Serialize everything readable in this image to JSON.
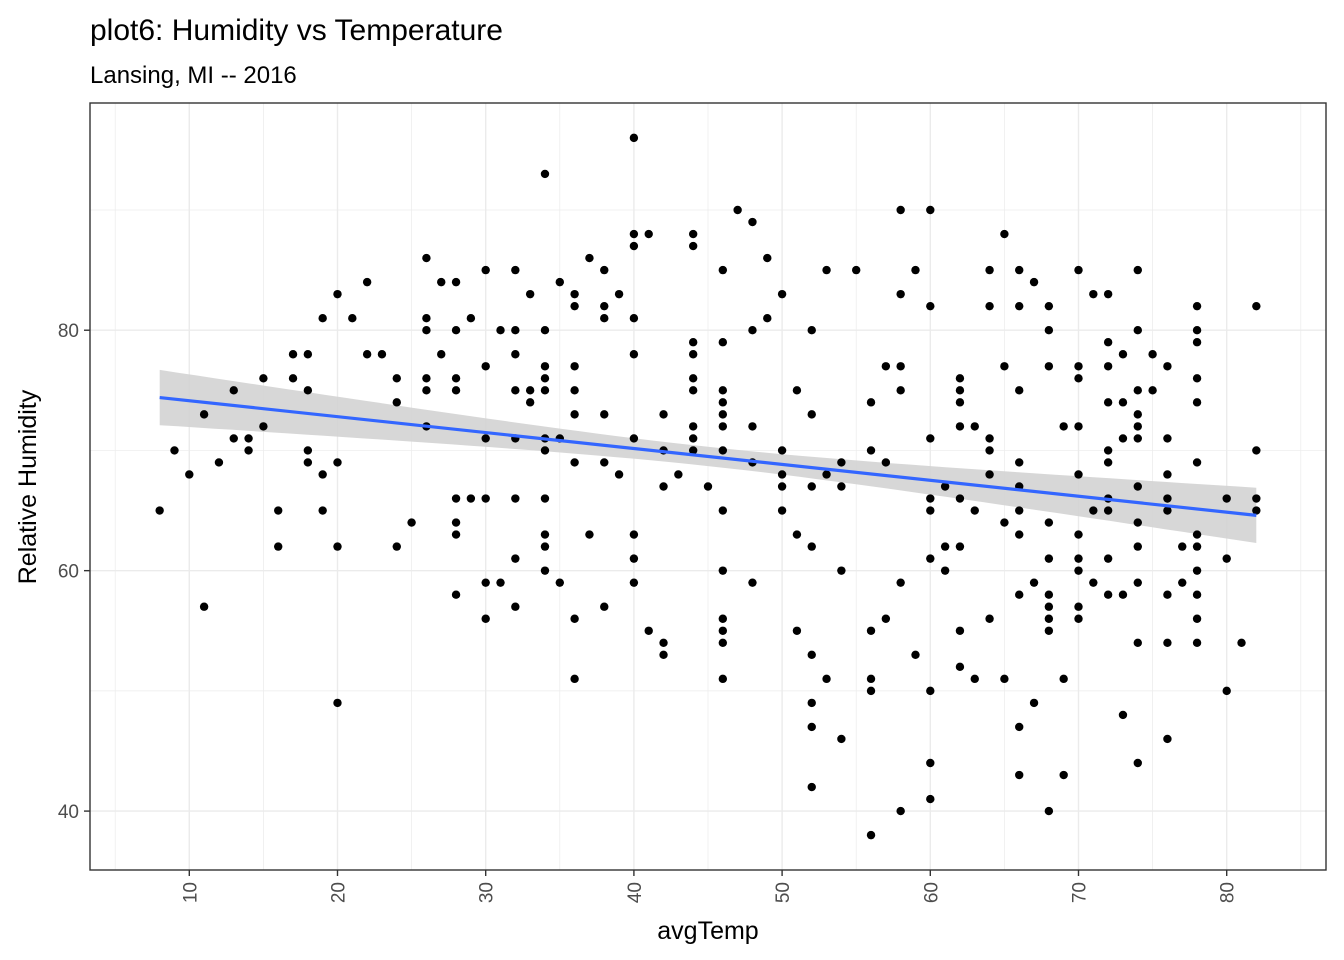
{
  "chart_data": {
    "type": "scatter",
    "title": "plot6: Humidity vs Temperature",
    "subtitle": "Lansing, MI -- 2016",
    "xlabel": "avgTemp",
    "ylabel": "Relative Humidity",
    "xlim": [
      3.3,
      86.7
    ],
    "ylim": [
      35.1,
      98.9
    ],
    "x_ticks": [
      10,
      20,
      30,
      40,
      50,
      60,
      70,
      80
    ],
    "y_ticks": [
      40,
      60,
      80
    ],
    "grid": true,
    "colors": {
      "points": "#000000",
      "trend_line": "#3366FF",
      "confidence_band": "#d3d3d3",
      "panel_border": "#333333",
      "grid": "#ebebeb"
    },
    "trend_line": {
      "method": "linear",
      "start": [
        8,
        74.4
      ],
      "end": [
        82,
        64.6
      ],
      "band_halfwidth_ends": 2.3,
      "band_halfwidth_mid": 0.8
    },
    "points": [
      [
        8,
        65
      ],
      [
        9,
        70
      ],
      [
        10,
        68
      ],
      [
        11,
        73
      ],
      [
        11,
        57
      ],
      [
        12,
        69
      ],
      [
        13,
        75
      ],
      [
        13,
        71
      ],
      [
        14,
        71
      ],
      [
        14,
        70
      ],
      [
        15,
        76
      ],
      [
        15,
        72
      ],
      [
        16,
        65
      ],
      [
        16,
        62
      ],
      [
        17,
        78
      ],
      [
        17,
        76
      ],
      [
        18,
        78
      ],
      [
        18,
        75
      ],
      [
        18,
        70
      ],
      [
        18,
        69
      ],
      [
        19,
        81
      ],
      [
        19,
        68
      ],
      [
        19,
        65
      ],
      [
        20,
        83
      ],
      [
        20,
        69
      ],
      [
        20,
        62
      ],
      [
        20,
        49
      ],
      [
        21,
        81
      ],
      [
        22,
        84
      ],
      [
        22,
        78
      ],
      [
        23,
        78
      ],
      [
        24,
        76
      ],
      [
        24,
        74
      ],
      [
        24,
        62
      ],
      [
        25,
        64
      ],
      [
        26,
        86
      ],
      [
        26,
        81
      ],
      [
        26,
        80
      ],
      [
        26,
        76
      ],
      [
        26,
        75
      ],
      [
        26,
        72
      ],
      [
        27,
        84
      ],
      [
        27,
        78
      ],
      [
        28,
        84
      ],
      [
        28,
        80
      ],
      [
        28,
        76
      ],
      [
        28,
        75
      ],
      [
        28,
        66
      ],
      [
        28,
        64
      ],
      [
        28,
        63
      ],
      [
        28,
        58
      ],
      [
        29,
        81
      ],
      [
        29,
        66
      ],
      [
        30,
        85
      ],
      [
        30,
        77
      ],
      [
        30,
        71
      ],
      [
        30,
        66
      ],
      [
        30,
        59
      ],
      [
        30,
        56
      ],
      [
        31,
        80
      ],
      [
        31,
        59
      ],
      [
        32,
        85
      ],
      [
        32,
        80
      ],
      [
        32,
        78
      ],
      [
        32,
        75
      ],
      [
        32,
        71
      ],
      [
        32,
        66
      ],
      [
        32,
        61
      ],
      [
        32,
        57
      ],
      [
        33,
        83
      ],
      [
        33,
        75
      ],
      [
        33,
        74
      ],
      [
        34,
        93
      ],
      [
        34,
        80
      ],
      [
        34,
        77
      ],
      [
        34,
        76
      ],
      [
        34,
        75
      ],
      [
        34,
        71
      ],
      [
        34,
        70
      ],
      [
        34,
        66
      ],
      [
        34,
        63
      ],
      [
        34,
        62
      ],
      [
        34,
        60
      ],
      [
        35,
        84
      ],
      [
        35,
        71
      ],
      [
        35,
        59
      ],
      [
        36,
        83
      ],
      [
        36,
        82
      ],
      [
        36,
        77
      ],
      [
        36,
        75
      ],
      [
        36,
        73
      ],
      [
        36,
        69
      ],
      [
        36,
        56
      ],
      [
        36,
        51
      ],
      [
        37,
        86
      ],
      [
        37,
        63
      ],
      [
        38,
        85
      ],
      [
        38,
        82
      ],
      [
        38,
        81
      ],
      [
        38,
        73
      ],
      [
        38,
        69
      ],
      [
        38,
        57
      ],
      [
        39,
        83
      ],
      [
        39,
        68
      ],
      [
        40,
        96
      ],
      [
        40,
        88
      ],
      [
        40,
        87
      ],
      [
        40,
        81
      ],
      [
        40,
        78
      ],
      [
        40,
        71
      ],
      [
        40,
        63
      ],
      [
        40,
        61
      ],
      [
        40,
        59
      ],
      [
        41,
        88
      ],
      [
        41,
        55
      ],
      [
        42,
        73
      ],
      [
        42,
        70
      ],
      [
        42,
        67
      ],
      [
        42,
        54
      ],
      [
        42,
        53
      ],
      [
        43,
        68
      ],
      [
        44,
        88
      ],
      [
        44,
        87
      ],
      [
        44,
        79
      ],
      [
        44,
        78
      ],
      [
        44,
        76
      ],
      [
        44,
        75
      ],
      [
        44,
        72
      ],
      [
        44,
        71
      ],
      [
        44,
        70
      ],
      [
        45,
        67
      ],
      [
        46,
        85
      ],
      [
        46,
        79
      ],
      [
        46,
        75
      ],
      [
        46,
        74
      ],
      [
        46,
        73
      ],
      [
        46,
        72
      ],
      [
        46,
        70
      ],
      [
        46,
        65
      ],
      [
        46,
        60
      ],
      [
        46,
        56
      ],
      [
        46,
        55
      ],
      [
        46,
        54
      ],
      [
        46,
        51
      ],
      [
        47,
        90
      ],
      [
        48,
        89
      ],
      [
        48,
        80
      ],
      [
        48,
        72
      ],
      [
        48,
        69
      ],
      [
        48,
        59
      ],
      [
        49,
        86
      ],
      [
        49,
        81
      ],
      [
        50,
        83
      ],
      [
        50,
        70
      ],
      [
        50,
        68
      ],
      [
        50,
        67
      ],
      [
        50,
        65
      ],
      [
        51,
        75
      ],
      [
        51,
        63
      ],
      [
        51,
        55
      ],
      [
        52,
        80
      ],
      [
        52,
        73
      ],
      [
        52,
        67
      ],
      [
        52,
        62
      ],
      [
        52,
        53
      ],
      [
        52,
        49
      ],
      [
        52,
        47
      ],
      [
        52,
        42
      ],
      [
        53,
        85
      ],
      [
        53,
        68
      ],
      [
        53,
        51
      ],
      [
        54,
        69
      ],
      [
        54,
        67
      ],
      [
        54,
        60
      ],
      [
        54,
        46
      ],
      [
        55,
        85
      ],
      [
        56,
        74
      ],
      [
        56,
        70
      ],
      [
        56,
        55
      ],
      [
        56,
        51
      ],
      [
        56,
        50
      ],
      [
        56,
        38
      ],
      [
        57,
        77
      ],
      [
        57,
        69
      ],
      [
        57,
        56
      ],
      [
        58,
        90
      ],
      [
        58,
        83
      ],
      [
        58,
        77
      ],
      [
        58,
        75
      ],
      [
        58,
        59
      ],
      [
        58,
        40
      ],
      [
        59,
        85
      ],
      [
        59,
        53
      ],
      [
        60,
        90
      ],
      [
        60,
        82
      ],
      [
        60,
        71
      ],
      [
        60,
        66
      ],
      [
        60,
        65
      ],
      [
        60,
        61
      ],
      [
        60,
        50
      ],
      [
        60,
        44
      ],
      [
        60,
        41
      ],
      [
        61,
        67
      ],
      [
        61,
        62
      ],
      [
        61,
        60
      ],
      [
        62,
        76
      ],
      [
        62,
        75
      ],
      [
        62,
        74
      ],
      [
        62,
        72
      ],
      [
        62,
        66
      ],
      [
        62,
        62
      ],
      [
        62,
        55
      ],
      [
        62,
        52
      ],
      [
        63,
        72
      ],
      [
        63,
        65
      ],
      [
        63,
        51
      ],
      [
        64,
        85
      ],
      [
        64,
        82
      ],
      [
        64,
        71
      ],
      [
        64,
        70
      ],
      [
        64,
        68
      ],
      [
        64,
        56
      ],
      [
        65,
        88
      ],
      [
        65,
        77
      ],
      [
        65,
        64
      ],
      [
        65,
        51
      ],
      [
        66,
        85
      ],
      [
        66,
        82
      ],
      [
        66,
        75
      ],
      [
        66,
        69
      ],
      [
        66,
        67
      ],
      [
        66,
        65
      ],
      [
        66,
        63
      ],
      [
        66,
        58
      ],
      [
        66,
        47
      ],
      [
        66,
        43
      ],
      [
        67,
        84
      ],
      [
        67,
        59
      ],
      [
        67,
        49
      ],
      [
        68,
        82
      ],
      [
        68,
        80
      ],
      [
        68,
        77
      ],
      [
        68,
        64
      ],
      [
        68,
        61
      ],
      [
        68,
        58
      ],
      [
        68,
        57
      ],
      [
        68,
        56
      ],
      [
        68,
        55
      ],
      [
        68,
        40
      ],
      [
        69,
        72
      ],
      [
        69,
        51
      ],
      [
        69,
        43
      ],
      [
        70,
        85
      ],
      [
        70,
        77
      ],
      [
        70,
        76
      ],
      [
        70,
        72
      ],
      [
        70,
        68
      ],
      [
        70,
        63
      ],
      [
        70,
        61
      ],
      [
        70,
        60
      ],
      [
        70,
        57
      ],
      [
        70,
        56
      ],
      [
        71,
        83
      ],
      [
        71,
        65
      ],
      [
        71,
        59
      ],
      [
        72,
        83
      ],
      [
        72,
        79
      ],
      [
        72,
        77
      ],
      [
        72,
        74
      ],
      [
        72,
        70
      ],
      [
        72,
        69
      ],
      [
        72,
        66
      ],
      [
        72,
        65
      ],
      [
        72,
        61
      ],
      [
        72,
        58
      ],
      [
        73,
        78
      ],
      [
        73,
        74
      ],
      [
        73,
        71
      ],
      [
        73,
        58
      ],
      [
        73,
        48
      ],
      [
        74,
        85
      ],
      [
        74,
        80
      ],
      [
        74,
        75
      ],
      [
        74,
        73
      ],
      [
        74,
        72
      ],
      [
        74,
        71
      ],
      [
        74,
        67
      ],
      [
        74,
        64
      ],
      [
        74,
        62
      ],
      [
        74,
        59
      ],
      [
        74,
        54
      ],
      [
        74,
        44
      ],
      [
        75,
        78
      ],
      [
        75,
        75
      ],
      [
        76,
        77
      ],
      [
        76,
        71
      ],
      [
        76,
        68
      ],
      [
        76,
        66
      ],
      [
        76,
        65
      ],
      [
        76,
        58
      ],
      [
        76,
        54
      ],
      [
        76,
        46
      ],
      [
        77,
        62
      ],
      [
        77,
        59
      ],
      [
        78,
        82
      ],
      [
        78,
        80
      ],
      [
        78,
        79
      ],
      [
        78,
        76
      ],
      [
        78,
        74
      ],
      [
        78,
        69
      ],
      [
        78,
        63
      ],
      [
        78,
        62
      ],
      [
        78,
        60
      ],
      [
        78,
        58
      ],
      [
        78,
        56
      ],
      [
        78,
        54
      ],
      [
        80,
        66
      ],
      [
        80,
        61
      ],
      [
        80,
        50
      ],
      [
        81,
        54
      ],
      [
        82,
        82
      ],
      [
        82,
        70
      ],
      [
        82,
        66
      ],
      [
        82,
        65
      ]
    ]
  }
}
